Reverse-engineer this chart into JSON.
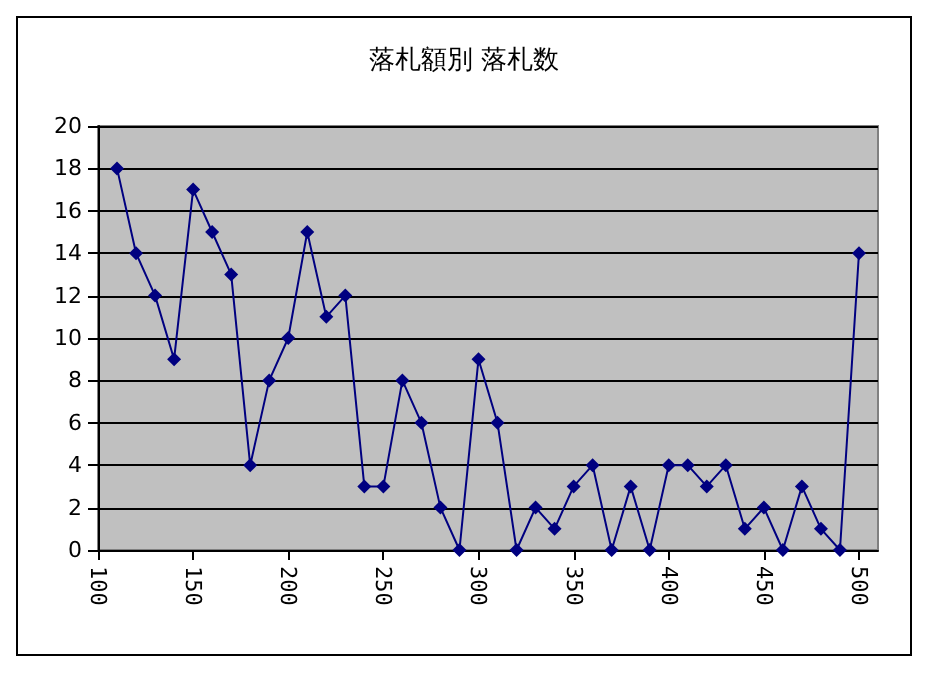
{
  "chart_data": {
    "type": "line",
    "title": "落札額別 落札数",
    "x": [
      110,
      120,
      130,
      140,
      150,
      160,
      170,
      180,
      190,
      200,
      210,
      220,
      230,
      240,
      250,
      260,
      270,
      280,
      290,
      300,
      310,
      320,
      330,
      340,
      350,
      360,
      370,
      380,
      390,
      400,
      410,
      420,
      430,
      440,
      450,
      460,
      470,
      480,
      490,
      500
    ],
    "series": [
      {
        "color": "#000080",
        "values": [
          18,
          14,
          12,
          9,
          17,
          15,
          13,
          4,
          8,
          10,
          15,
          11,
          12,
          3,
          3,
          8,
          6,
          2,
          0,
          9,
          6,
          0,
          2,
          1,
          3,
          4,
          0,
          3,
          0,
          4,
          4,
          3,
          4,
          1,
          2,
          0,
          3,
          1,
          0,
          14
        ]
      }
    ],
    "xlim": [
      100,
      510
    ],
    "xticks": [
      100,
      150,
      200,
      250,
      300,
      350,
      400,
      450,
      500
    ],
    "ylim": [
      0,
      20
    ],
    "yticks": [
      0,
      2,
      4,
      6,
      8,
      10,
      12,
      14,
      16,
      18,
      20
    ],
    "grid": "y",
    "marker": "diamond",
    "line_style": "solid"
  }
}
